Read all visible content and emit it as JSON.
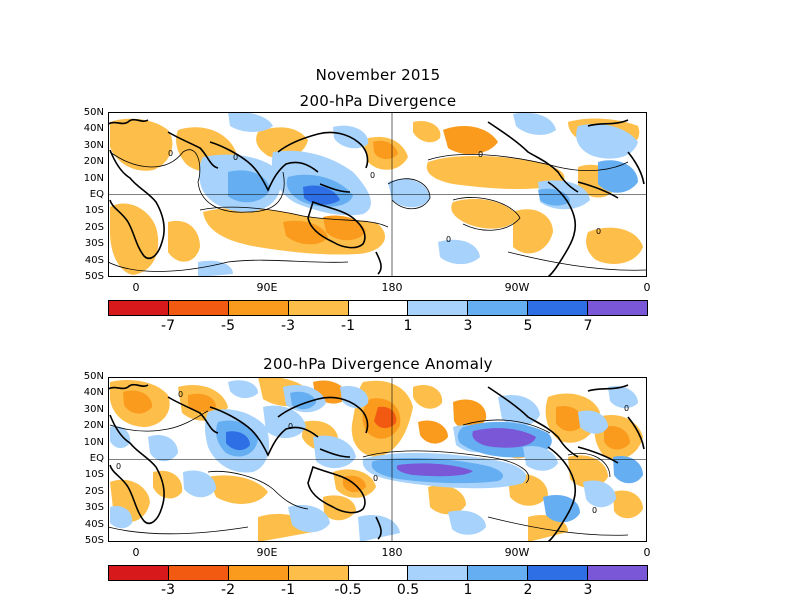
{
  "header": {
    "month": "November 2015"
  },
  "panels": [
    {
      "title": "200-hPa Divergence",
      "lat_labels": [
        "50N",
        "40N",
        "30N",
        "20N",
        "10N",
        "EQ",
        "10S",
        "20S",
        "30S",
        "40S",
        "50S"
      ],
      "lon_labels": [
        "0",
        "90E",
        "180",
        "90W",
        "0"
      ],
      "contour_label": "0",
      "colorbar": {
        "colors": [
          "#d7191c",
          "#f25a12",
          "#fa9b1e",
          "#fdbf4a",
          "#ffffff",
          "#a6d2fb",
          "#66aef2",
          "#2f6fe6",
          "#7a57d6"
        ],
        "labels": [
          "-7",
          "-5",
          "-3",
          "-1",
          "1",
          "3",
          "5",
          "7"
        ]
      }
    },
    {
      "title": "200-hPa Divergence Anomaly",
      "lat_labels": [
        "50N",
        "40N",
        "30N",
        "20N",
        "10N",
        "EQ",
        "10S",
        "20S",
        "30S",
        "40S",
        "50S"
      ],
      "lon_labels": [
        "0",
        "90E",
        "180",
        "90W",
        "0"
      ],
      "contour_label": "0",
      "colorbar": {
        "colors": [
          "#d7191c",
          "#f25a12",
          "#fa9b1e",
          "#fdbf4a",
          "#ffffff",
          "#a6d2fb",
          "#66aef2",
          "#2f6fe6",
          "#7a57d6"
        ],
        "labels": [
          "-3",
          "-2",
          "-1",
          "-0.5",
          "0.5",
          "1",
          "2",
          "3"
        ]
      }
    }
  ]
}
